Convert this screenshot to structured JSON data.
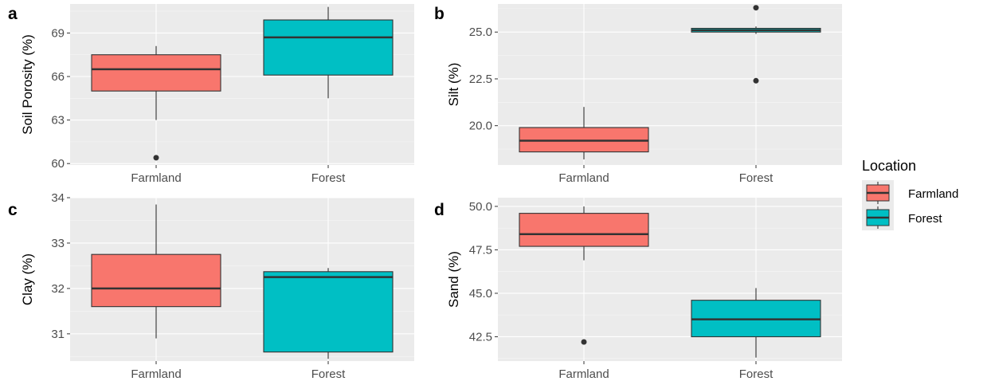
{
  "legend": {
    "title": "Location",
    "items": [
      {
        "label": "Farmland",
        "color": "#F8766D"
      },
      {
        "label": "Forest",
        "color": "#00BFC4"
      }
    ]
  },
  "chart_data": [
    {
      "type": "box",
      "tag": "a",
      "ylabel": "Soil Porosity (%)",
      "xlabel": "",
      "categories": [
        "Farmland",
        "Forest"
      ],
      "ylim": [
        59.9,
        71.0
      ],
      "yticks": [
        60,
        63,
        66,
        69
      ],
      "ytick_labels": [
        "60",
        "63",
        "66",
        "69"
      ],
      "boxes": [
        {
          "category": "Farmland",
          "min": 63.0,
          "q1": 65.0,
          "median": 66.5,
          "q3": 67.5,
          "max": 68.1,
          "outliers": [
            60.4
          ],
          "color": "#F8766D"
        },
        {
          "category": "Forest",
          "min": 64.5,
          "q1": 66.1,
          "median": 68.7,
          "q3": 69.9,
          "max": 70.8,
          "outliers": [],
          "color": "#00BFC4"
        }
      ]
    },
    {
      "type": "box",
      "tag": "b",
      "ylabel": "Silt (%)",
      "xlabel": "",
      "categories": [
        "Farmland",
        "Forest"
      ],
      "ylim": [
        17.9,
        26.5
      ],
      "yticks": [
        20.0,
        22.5,
        25.0
      ],
      "ytick_labels": [
        "20.0",
        "22.5",
        "25.0"
      ],
      "boxes": [
        {
          "category": "Farmland",
          "min": 18.2,
          "q1": 18.6,
          "median": 19.2,
          "q3": 19.9,
          "max": 21.0,
          "outliers": [],
          "color": "#F8766D"
        },
        {
          "category": "Forest",
          "min": 24.9,
          "q1": 25.0,
          "median": 25.1,
          "q3": 25.2,
          "max": 25.3,
          "outliers": [
            26.3,
            22.4
          ],
          "color": "#00BFC4"
        }
      ]
    },
    {
      "type": "box",
      "tag": "c",
      "ylabel": "Clay (%)",
      "xlabel": "",
      "categories": [
        "Farmland",
        "Forest"
      ],
      "ylim": [
        30.4,
        34.0
      ],
      "yticks": [
        31,
        32,
        33,
        34
      ],
      "ytick_labels": [
        "31",
        "32",
        "33",
        "34"
      ],
      "boxes": [
        {
          "category": "Farmland",
          "min": 30.9,
          "q1": 31.6,
          "median": 32.0,
          "q3": 32.75,
          "max": 33.85,
          "outliers": [],
          "color": "#F8766D"
        },
        {
          "category": "Forest",
          "min": 30.45,
          "q1": 30.6,
          "median": 32.25,
          "q3": 32.37,
          "max": 32.45,
          "outliers": [],
          "color": "#00BFC4"
        }
      ]
    },
    {
      "type": "box",
      "tag": "d",
      "ylabel": "Sand (%)",
      "xlabel": "",
      "categories": [
        "Farmland",
        "Forest"
      ],
      "ylim": [
        41.1,
        50.5
      ],
      "yticks": [
        42.5,
        45.0,
        47.5,
        50.0
      ],
      "ytick_labels": [
        "42.5",
        "45.0",
        "47.5",
        "50.0"
      ],
      "boxes": [
        {
          "category": "Farmland",
          "min": 46.9,
          "q1": 47.7,
          "median": 48.4,
          "q3": 49.6,
          "max": 50.0,
          "outliers": [
            42.2
          ],
          "color": "#F8766D"
        },
        {
          "category": "Forest",
          "min": 41.3,
          "q1": 42.5,
          "median": 43.5,
          "q3": 44.6,
          "max": 45.3,
          "outliers": [],
          "color": "#00BFC4"
        }
      ]
    }
  ]
}
